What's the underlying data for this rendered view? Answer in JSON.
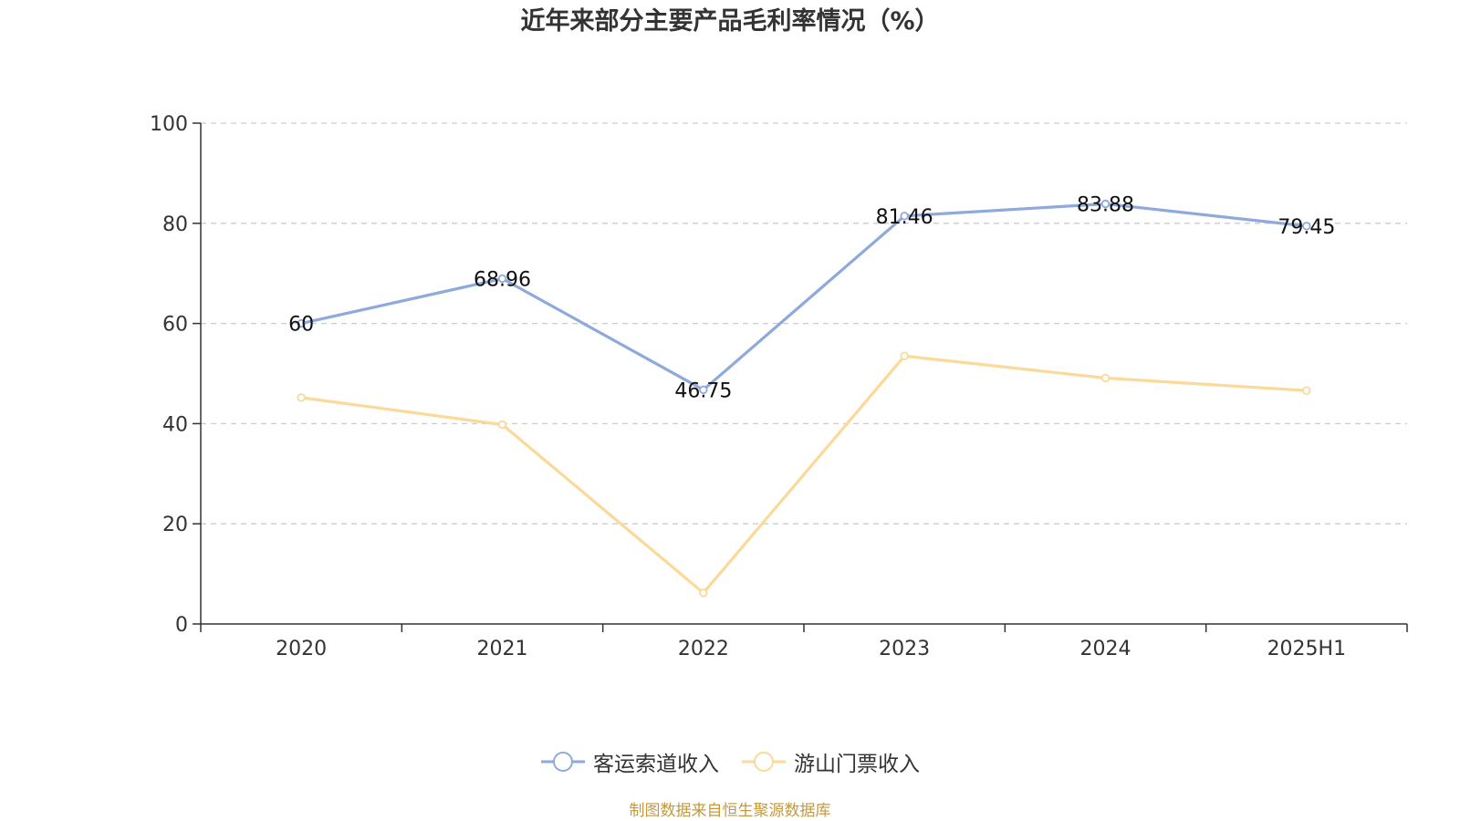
{
  "chart_data": {
    "type": "line",
    "title": "近年来部分主要产品毛利率情况（%）",
    "categories": [
      "2020",
      "2021",
      "2022",
      "2023",
      "2024",
      "2025H1"
    ],
    "ylim": [
      0,
      100
    ],
    "yticks": [
      0,
      20,
      40,
      60,
      80,
      100
    ],
    "grid": true,
    "legend_position": "bottom",
    "series": [
      {
        "name": "客运索道收入",
        "values": [
          60,
          68.96,
          46.75,
          81.46,
          83.88,
          79.45
        ],
        "labels": [
          "60",
          "68.96",
          "46.75",
          "81.46",
          "83.88",
          "79.45"
        ],
        "color": "#8eaadb"
      },
      {
        "name": "游山门票收入",
        "values": [
          45.2,
          39.8,
          6.2,
          53.5,
          49.1,
          46.6
        ],
        "color": "#fad999"
      }
    ]
  },
  "source_note": "制图数据来自恒生聚源数据库"
}
